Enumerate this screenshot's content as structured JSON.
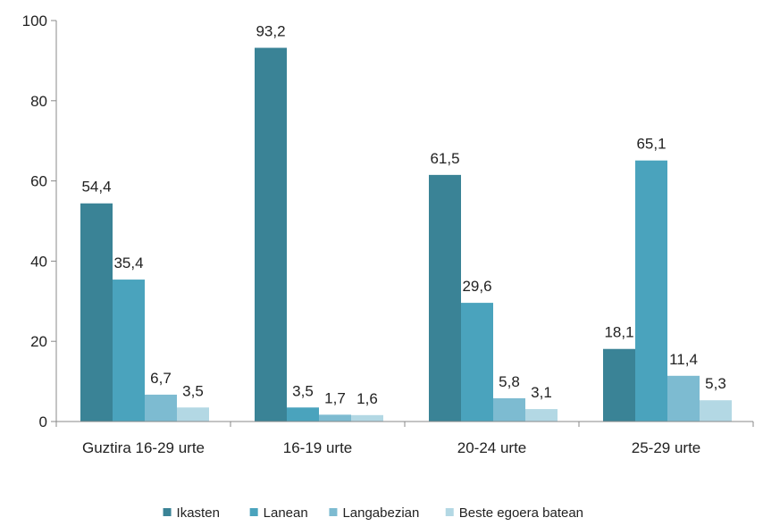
{
  "chart_data": {
    "type": "bar",
    "categories": [
      "Guztira 16-29 urte",
      "16-19 urte",
      "20-24 urte",
      "25-29 urte"
    ],
    "series": [
      {
        "name": "Ikasten",
        "values": [
          54.4,
          93.2,
          61.5,
          18.1
        ],
        "labels": [
          "54,4",
          "93,2",
          "61,5",
          "18,1"
        ],
        "color": "#3a8396"
      },
      {
        "name": "Lanean",
        "values": [
          35.4,
          3.5,
          29.6,
          65.1
        ],
        "labels": [
          "35,4",
          "3,5",
          "29,6",
          "65,1"
        ],
        "color": "#4aa3bd"
      },
      {
        "name": "Langabezian",
        "values": [
          6.7,
          1.7,
          5.8,
          11.4
        ],
        "labels": [
          "6,7",
          "1,7",
          "5,8",
          "11,4"
        ],
        "color": "#7dbbd1"
      },
      {
        "name": "Beste egoera batean",
        "values": [
          3.5,
          1.6,
          3.1,
          5.3
        ],
        "labels": [
          "3,5",
          "1,6",
          "3,1",
          "5,3"
        ],
        "color": "#b3d8e4"
      }
    ],
    "ylim": [
      0,
      100
    ],
    "yticks": [
      0,
      20,
      40,
      60,
      80,
      100
    ],
    "ytick_labels": [
      "0",
      "20",
      "40",
      "60",
      "80",
      "100"
    ],
    "grid": false,
    "legend_position": "bottom",
    "title": "",
    "xlabel": "",
    "ylabel": ""
  }
}
